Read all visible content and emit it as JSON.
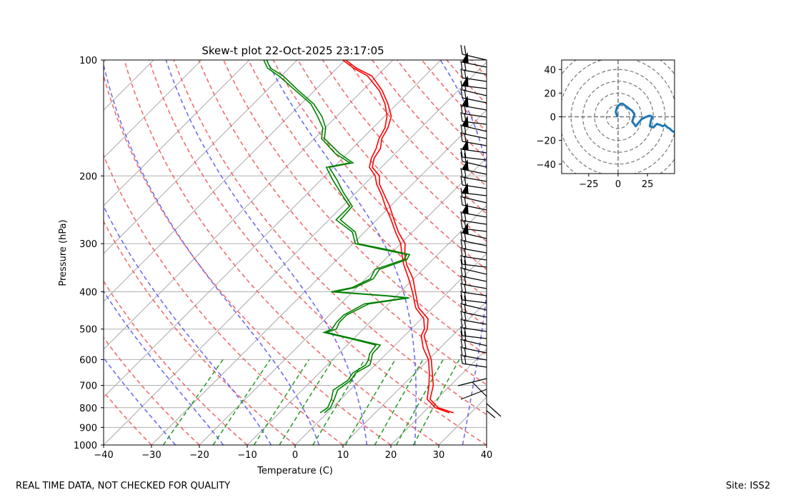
{
  "chart_data": [
    {
      "type": "skew-t",
      "title": "Skew-t plot 22-Oct-2025 23:17:05",
      "xlabel": "Temperature (C)",
      "ylabel": "Pressure (hPa)",
      "xlim": [
        -40,
        40
      ],
      "ylim": [
        1000,
        100
      ],
      "x_ticks": [
        "−40",
        "−30",
        "−20",
        "−10",
        "0",
        "10",
        "20",
        "30",
        "40"
      ],
      "y_ticks": [
        "100",
        "200",
        "300",
        "400",
        "500",
        "600",
        "700",
        "800",
        "900",
        "1000"
      ],
      "grid": true,
      "colors": {
        "temperature": "#ff0000",
        "dewpoint": "#008000",
        "dry_adiabats": "#ee5555",
        "moist_adiabats": "#5555ee",
        "mixing_ratio": "#229922",
        "isotherms": "#aaaaaa"
      },
      "series": [
        {
          "name": "Temperature",
          "color": "#ff0000",
          "points": [
            [
              825,
              25.5
            ],
            [
              800,
              21.5
            ],
            [
              760,
              18.0
            ],
            [
              700,
              15.5
            ],
            [
              650,
              13.0
            ],
            [
              600,
              10.0
            ],
            [
              560,
              6.5
            ],
            [
              520,
              3.5
            ],
            [
              500,
              2.8
            ],
            [
              470,
              0.5
            ],
            [
              440,
              -3.5
            ],
            [
              400,
              -7.5
            ],
            [
              370,
              -11.0
            ],
            [
              340,
              -15.0
            ],
            [
              320,
              -17.5
            ],
            [
              300,
              -20.0
            ],
            [
              280,
              -23.5
            ],
            [
              260,
              -27.0
            ],
            [
              240,
              -31.0
            ],
            [
              225,
              -34.0
            ],
            [
              210,
              -37.5
            ],
            [
              200,
              -39.5
            ],
            [
              190,
              -42.5
            ],
            [
              180,
              -44.0
            ],
            [
              170,
              -45.0
            ],
            [
              160,
              -46.5
            ],
            [
              150,
              -47.5
            ],
            [
              140,
              -49.5
            ],
            [
              130,
              -52.5
            ],
            [
              120,
              -56.5
            ],
            [
              110,
              -62.0
            ],
            [
              105,
              -66.5
            ],
            [
              100,
              -70.5
            ]
          ]
        },
        {
          "name": "Dewpoint",
          "color": "#008000",
          "points": [
            [
              825,
              -1.5
            ],
            [
              800,
              -1.0
            ],
            [
              760,
              -2.0
            ],
            [
              720,
              -3.5
            ],
            [
              680,
              -2.5
            ],
            [
              650,
              -3.0
            ],
            [
              620,
              -2.0
            ],
            [
              600,
              -2.5
            ],
            [
              580,
              -3.5
            ],
            [
              550,
              -4.0
            ],
            [
              530,
              -10.5
            ],
            [
              510,
              -17.5
            ],
            [
              500,
              -16.5
            ],
            [
              480,
              -17.0
            ],
            [
              460,
              -17.0
            ],
            [
              430,
              -15.0
            ],
            [
              415,
              -7.5
            ],
            [
              410,
              -12.0
            ],
            [
              400,
              -24.5
            ],
            [
              390,
              -21.0
            ],
            [
              370,
              -19.0
            ],
            [
              350,
              -20.0
            ],
            [
              330,
              -16.0
            ],
            [
              320,
              -16.5
            ],
            [
              310,
              -23.0
            ],
            [
              300,
              -29.5
            ],
            [
              280,
              -32.5
            ],
            [
              260,
              -38.5
            ],
            [
              240,
              -38.5
            ],
            [
              220,
              -43.5
            ],
            [
              205,
              -47.5
            ],
            [
              190,
              -51.5
            ],
            [
              185,
              -47.5
            ],
            [
              175,
              -52.5
            ],
            [
              160,
              -58.5
            ],
            [
              150,
              -60.5
            ],
            [
              140,
              -64.0
            ],
            [
              130,
              -68.0
            ],
            [
              120,
              -74.0
            ],
            [
              110,
              -80.5
            ],
            [
              105,
              -84.5
            ],
            [
              100,
              -87.0
            ]
          ]
        }
      ]
    },
    {
      "type": "hodograph",
      "xlim": [
        -48,
        48
      ],
      "ylim": [
        -48,
        48
      ],
      "x_ticks": [
        "−25",
        "0",
        "25"
      ],
      "y_ticks": [
        "40",
        "20",
        "0",
        "−20",
        "−40"
      ],
      "ring_radii": [
        10,
        20,
        30,
        40,
        50,
        60
      ],
      "color": "#1f77b4",
      "u": [
        0,
        -1,
        -2,
        -1,
        2,
        4,
        8,
        12,
        14,
        12,
        15,
        20,
        24,
        27,
        29,
        28,
        27,
        30,
        33,
        36,
        38,
        40,
        42,
        44,
        46,
        48
      ],
      "v": [
        0,
        1,
        4,
        8,
        11,
        11,
        8,
        5,
        2,
        -4,
        -8,
        -2,
        0,
        1,
        0,
        -3,
        -8,
        -9,
        -6,
        -7,
        -8,
        -7,
        -9,
        -10,
        -12,
        -13
      ]
    }
  ],
  "footer": {
    "left": "REAL TIME DATA, NOT CHECKED FOR QUALITY",
    "right": "Site: ISS2"
  }
}
